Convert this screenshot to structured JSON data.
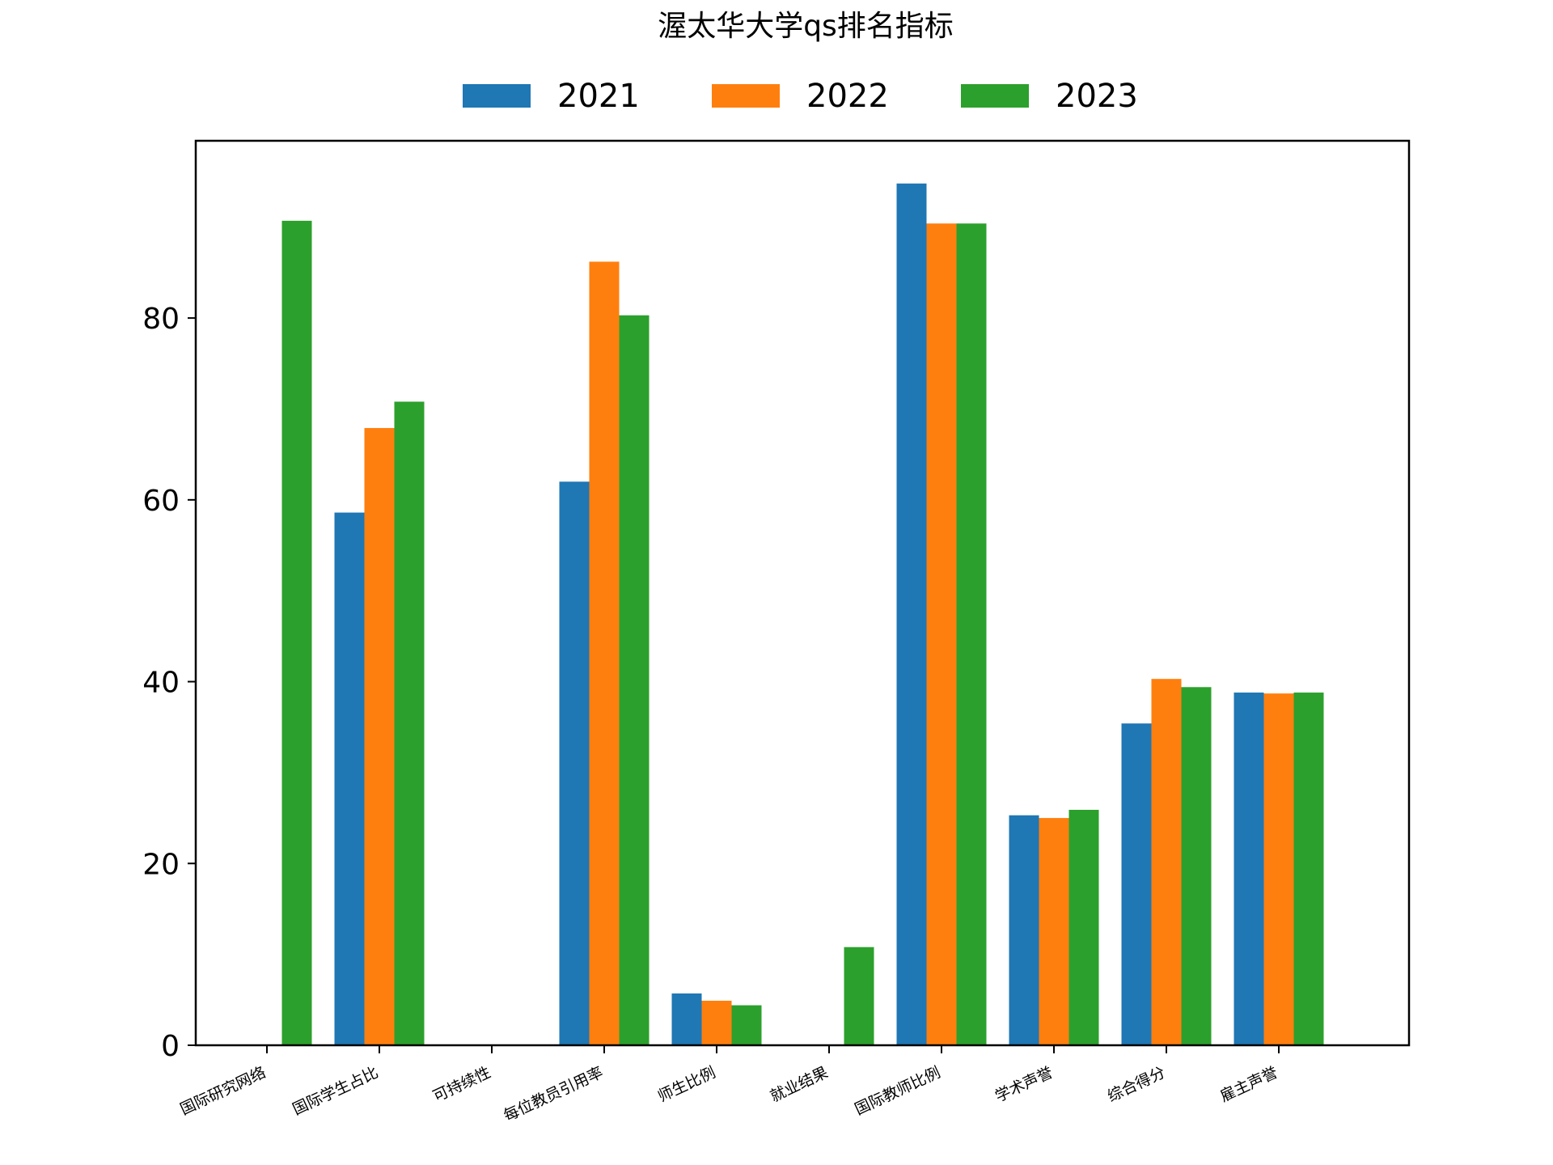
{
  "chart_data": {
    "type": "bar",
    "title": "渥太华大学qs排名指标",
    "xlabel": "",
    "ylabel": "",
    "categories": [
      "国际研究网络",
      "国际学生占比",
      "可持续性",
      "每位教员引用率",
      "师生比例",
      "就业结果",
      "国际教师比例",
      "学术声誉",
      "综合得分",
      "雇主声誉"
    ],
    "series": [
      {
        "name": "2021",
        "color": "#1f77b4",
        "values": [
          null,
          58.6,
          null,
          62.0,
          5.7,
          null,
          94.8,
          25.3,
          35.4,
          38.8
        ]
      },
      {
        "name": "2022",
        "color": "#ff7f0e",
        "values": [
          null,
          67.9,
          null,
          86.2,
          4.9,
          null,
          90.4,
          25.0,
          40.3,
          38.7
        ]
      },
      {
        "name": "2023",
        "color": "#2ca02c",
        "values": [
          90.7,
          70.8,
          null,
          80.3,
          4.4,
          10.8,
          90.4,
          25.9,
          39.4,
          38.8
        ]
      }
    ],
    "yticks": [
      0,
      20,
      40,
      60,
      80
    ],
    "ylim": [
      0,
      99.5
    ],
    "legend_position": "top-center",
    "grid": false
  }
}
